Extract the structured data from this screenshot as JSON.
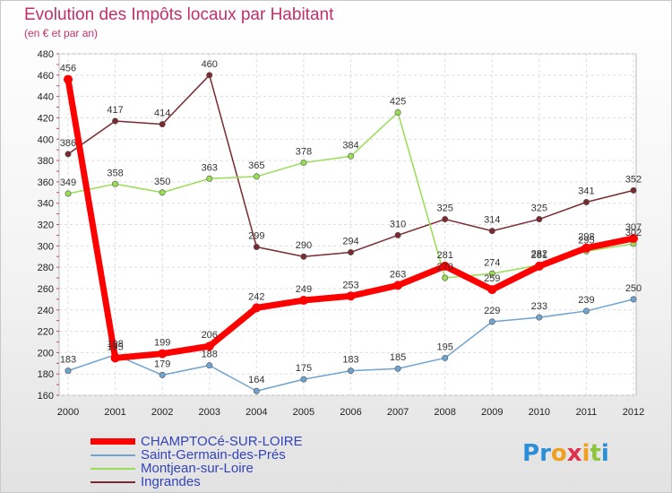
{
  "header": {
    "title": "Evolution des Impôts locaux par Habitant",
    "subtitle": "(en € et par an)"
  },
  "logo": {
    "letters": [
      {
        "char": "P",
        "color": "#2a8fd8"
      },
      {
        "char": "r",
        "color": "#2a8fd8"
      },
      {
        "char": "o",
        "color": "#f0a020"
      },
      {
        "char": "x",
        "color": "#e03050"
      },
      {
        "char": "i",
        "color": "#f0a020"
      },
      {
        "char": "t",
        "color": "#8cc63f"
      },
      {
        "char": "i",
        "color": "#2a8fd8"
      }
    ]
  },
  "chart_data": {
    "type": "line",
    "x": [
      "2000",
      "2001",
      "2002",
      "2003",
      "2004",
      "2005",
      "2006",
      "2007",
      "2008",
      "2009",
      "2010",
      "2011",
      "2012"
    ],
    "ylim": [
      160,
      480
    ],
    "yticks": [
      160,
      180,
      200,
      220,
      240,
      260,
      280,
      300,
      320,
      340,
      360,
      380,
      400,
      420,
      440,
      460,
      480
    ],
    "grid": true,
    "legend_position": "bottom-left",
    "series": [
      {
        "name": "Ingrandes",
        "color": "#7a2a30",
        "values": [
          386,
          417,
          414,
          460,
          299,
          290,
          294,
          310,
          325,
          314,
          325,
          341,
          352
        ]
      },
      {
        "name": "Montjean-sur-Loire",
        "color": "#99dd55",
        "values": [
          349,
          358,
          350,
          363,
          365,
          378,
          384,
          425,
          270,
          274,
          282,
          295,
          302
        ]
      },
      {
        "name": "Saint-Germain-des-Prés",
        "color": "#6fa3d0",
        "values": [
          183,
          198,
          179,
          188,
          164,
          175,
          183,
          185,
          195,
          229,
          233,
          239,
          250
        ]
      },
      {
        "name": "CHAMPTOCé-SUR-LOIRE",
        "color": "#ff0000",
        "values": [
          456,
          195,
          199,
          206,
          242,
          249,
          253,
          263,
          281,
          259,
          281,
          298,
          307
        ]
      }
    ],
    "legend_order": [
      "CHAMPTOCé-SUR-LOIRE",
      "Saint-Germain-des-Prés",
      "Montjean-sur-Loire",
      "Ingrandes"
    ]
  }
}
